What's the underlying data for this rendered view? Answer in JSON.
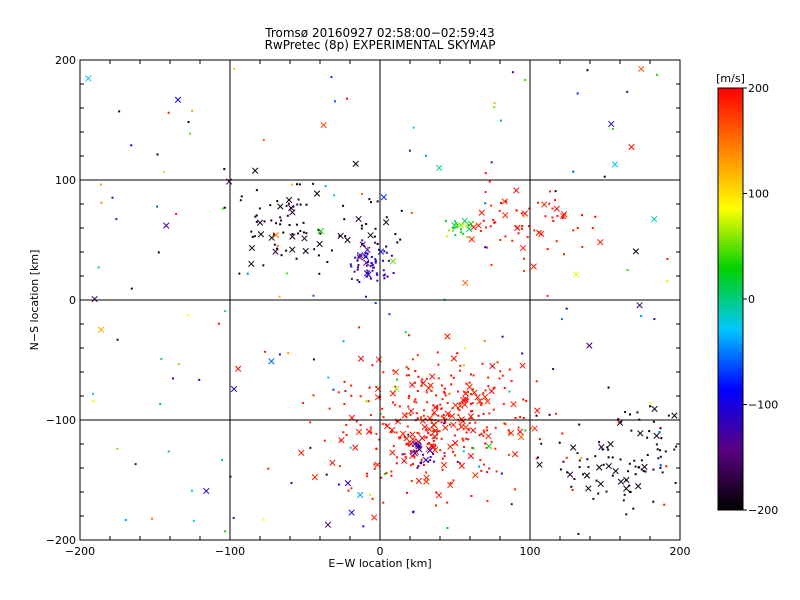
{
  "chart_data": {
    "type": "scatter",
    "title": "Tromsø 20160927 02:58:00−02:59:43",
    "subtitle": "RwPretec (8p) EXPERIMENTAL SKYMAP",
    "xlabel": "E−W location [km]",
    "ylabel": "N−S location [km]",
    "xlim": [
      -200,
      200
    ],
    "ylim": [
      -200,
      200
    ],
    "xticks": [
      "−200",
      "−100",
      "0",
      "100",
      "200"
    ],
    "yticks": [
      "200",
      "100",
      "0",
      "−100",
      "−200"
    ],
    "grid_x": [
      -100,
      0,
      100
    ],
    "grid_y": [
      -100,
      0,
      100
    ],
    "markers": "small dots and x crosses, colored by velocity",
    "colorbar": {
      "label": "[m/s]",
      "range": [
        -200,
        200
      ],
      "ticks": [
        "200",
        "100",
        "0",
        "−100",
        "−200"
      ],
      "colors": [
        "#000000",
        "#5a0080",
        "#0000ff",
        "#00c8ff",
        "#00d000",
        "#ffff00",
        "#ff8000",
        "#ff0000"
      ]
    },
    "clusters": [
      {
        "name": "north-west black",
        "center": [
          -65,
          60
        ],
        "spread": [
          15,
          18
        ],
        "count": 70,
        "velocity_range": [
          -200,
          -170
        ]
      },
      {
        "name": "central blue",
        "center": [
          -5,
          32
        ],
        "spread": [
          7,
          9
        ],
        "count": 60,
        "velocity_range": [
          -150,
          -100
        ]
      },
      {
        "name": "central black",
        "center": [
          -10,
          60
        ],
        "spread": [
          12,
          12
        ],
        "count": 25,
        "velocity_range": [
          -200,
          -180
        ]
      },
      {
        "name": "north green",
        "center": [
          52,
          60
        ],
        "spread": [
          5,
          5
        ],
        "count": 25,
        "velocity_range": [
          0,
          80
        ]
      },
      {
        "name": "north-east red",
        "center": [
          95,
          65
        ],
        "spread": [
          20,
          15
        ],
        "count": 70,
        "velocity_range": [
          180,
          200
        ]
      },
      {
        "name": "south red main",
        "center": [
          35,
          -100
        ],
        "spread": [
          33,
          27
        ],
        "count": 380,
        "velocity_range": [
          180,
          200
        ]
      },
      {
        "name": "south blue knot",
        "center": [
          30,
          -130
        ],
        "spread": [
          8,
          6
        ],
        "count": 25,
        "velocity_range": [
          -150,
          -110
        ]
      },
      {
        "name": "south-east black",
        "center": [
          165,
          -135
        ],
        "spread": [
          25,
          25
        ],
        "count": 110,
        "velocity_range": [
          -200,
          -170
        ]
      },
      {
        "name": "scattered mix",
        "center": [
          0,
          0
        ],
        "spread": [
          120,
          120
        ],
        "count": 180,
        "velocity_range": [
          -200,
          200
        ]
      }
    ]
  }
}
